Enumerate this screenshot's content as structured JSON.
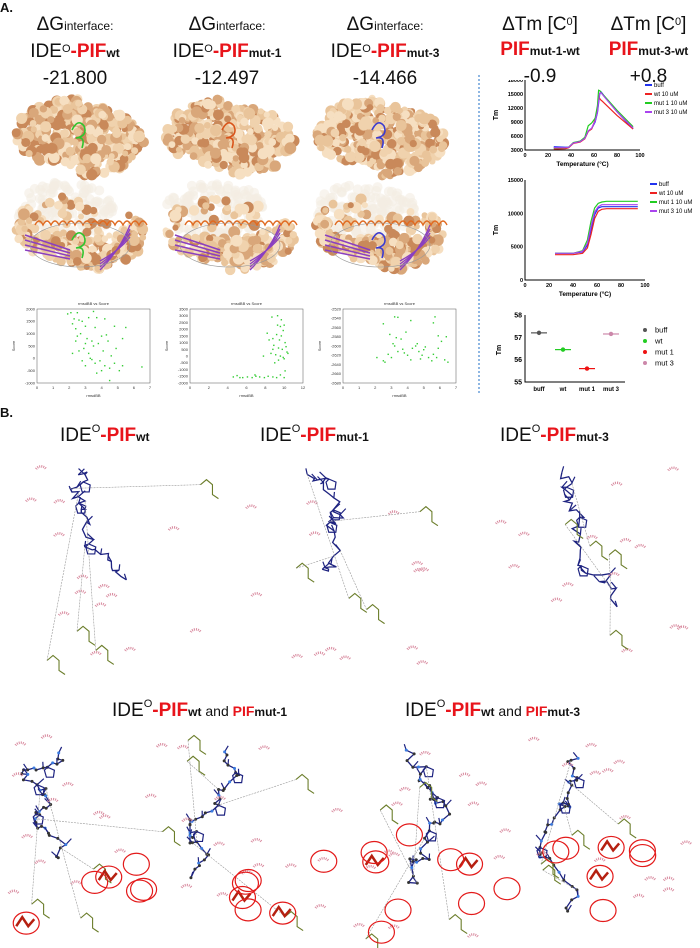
{
  "panel_a": {
    "label": "A.",
    "headers": [
      {
        "line1": "ΔG",
        "line1_sub": "interface:",
        "pre": "IDE",
        "sup": "O",
        "pif": "-PIF",
        "variant": "wt",
        "value": "-21.800"
      },
      {
        "line1": "ΔG",
        "line1_sub": "interface:",
        "pre": "IDE",
        "sup": "O",
        "pif": "-PIF",
        "variant": "mut-1",
        "value": "-12.497"
      },
      {
        "line1": "ΔG",
        "line1_sub": "interface:",
        "pre": "IDE",
        "sup": "O",
        "pif": "-PIF",
        "variant": "mut-3",
        "value": "-14.466"
      },
      {
        "line1": "ΔTm [C",
        "line1_sup": "0",
        "line1_end": "]",
        "pif": "PIF",
        "variant": "mut-1-wt",
        "value": "-0.9"
      },
      {
        "line1": "ΔTm [C",
        "line1_sup": "0",
        "line1_end": "]",
        "pif": "PIF",
        "variant": "mut-3-wt",
        "value": "+0.8"
      }
    ],
    "ligand_colors": [
      "#2fc42f",
      "#d9541a",
      "#3b3bd0"
    ]
  },
  "panel_b": {
    "label": "B.",
    "titles": [
      {
        "pre": "IDE",
        "sup": "O",
        "pif": "-PIF",
        "variant": "wt"
      },
      {
        "pre": "IDE",
        "sup": "O",
        "pif": "-PIF",
        "variant": "mut-1"
      },
      {
        "pre": "IDE",
        "sup": "O",
        "pif": "-PIF",
        "variant": "mut-3"
      }
    ],
    "compare_titles": [
      {
        "pre": "IDE",
        "sup": "O",
        "pif": "-PIF",
        "variant": "wt",
        "and": " and ",
        "pif2": "PIF",
        "variant2": "mut-1"
      },
      {
        "pre": "IDE",
        "sup": "O",
        "pif": "-PIF",
        "variant": "wt",
        "and": " and ",
        "pif2": "PIF",
        "variant2": "mut-3"
      }
    ]
  },
  "chart_data": [
    {
      "type": "scatter",
      "title": "rmsdBB vs Score",
      "xlabel": "rmsdBB",
      "ylabel": "Score",
      "xlim": [
        0,
        7
      ],
      "ylim": [
        -1000,
        2000
      ],
      "xticks": [
        0,
        1,
        2,
        3,
        4,
        5,
        6,
        7
      ],
      "yticks": [
        -1000,
        -500,
        0,
        500,
        1000,
        1500,
        2000
      ],
      "color": "#33cc33",
      "points": [
        [
          1.9,
          1800
        ],
        [
          2.1,
          1850
        ],
        [
          2.3,
          1600
        ],
        [
          2.5,
          1850
        ],
        [
          2.2,
          1400
        ],
        [
          2.6,
          1550
        ],
        [
          2.8,
          1500
        ],
        [
          3.0,
          1300
        ],
        [
          3.2,
          1650
        ],
        [
          3.5,
          1900
        ],
        [
          3.7,
          1650
        ],
        [
          4.2,
          1600
        ],
        [
          2.4,
          1200
        ],
        [
          2.7,
          1000
        ],
        [
          3.1,
          800
        ],
        [
          3.4,
          700
        ],
        [
          3.6,
          1250
        ],
        [
          4.0,
          900
        ],
        [
          4.3,
          950
        ],
        [
          4.8,
          1300
        ],
        [
          5.5,
          1250
        ],
        [
          2.4,
          700
        ],
        [
          2.6,
          300
        ],
        [
          2.9,
          400
        ],
        [
          3.2,
          200
        ],
        [
          3.5,
          500
        ],
        [
          3.8,
          600
        ],
        [
          4.1,
          300
        ],
        [
          4.4,
          700
        ],
        [
          4.9,
          400
        ],
        [
          5.3,
          800
        ],
        [
          2.2,
          200
        ],
        [
          2.8,
          -100
        ],
        [
          3.0,
          -300
        ],
        [
          3.3,
          0
        ],
        [
          3.6,
          -200
        ],
        [
          3.9,
          -100
        ],
        [
          4.2,
          -300
        ],
        [
          4.5,
          -400
        ],
        [
          4.8,
          -200
        ],
        [
          5.1,
          -500
        ],
        [
          5.3,
          -300
        ],
        [
          3.7,
          -600
        ],
        [
          4.5,
          -900
        ],
        [
          6.5,
          -350
        ],
        [
          3.0,
          600
        ],
        [
          4.6,
          100
        ],
        [
          3.4,
          -50
        ],
        [
          4.0,
          -500
        ],
        [
          2.5,
          900
        ]
      ]
    },
    {
      "type": "scatter",
      "title": "rmsdBB vs Score",
      "xlabel": "rmsdBB",
      "ylabel": "Score",
      "xlim": [
        0,
        12
      ],
      "ylim": [
        -2000,
        3500
      ],
      "xticks": [
        0,
        2,
        4,
        6,
        8,
        10,
        12
      ],
      "yticks": [
        -2000,
        -1500,
        -1000,
        -500,
        0,
        500,
        1000,
        1500,
        2000,
        2500,
        3000,
        3500
      ],
      "color": "#33cc33",
      "points": [
        [
          8.7,
          2900
        ],
        [
          9.3,
          3000
        ],
        [
          9.7,
          2700
        ],
        [
          10.0,
          2300
        ],
        [
          9.6,
          2200
        ],
        [
          9.9,
          1900
        ],
        [
          9.2,
          1600
        ],
        [
          8.8,
          1300
        ],
        [
          9.5,
          1200
        ],
        [
          10.1,
          1000
        ],
        [
          8.9,
          800
        ],
        [
          9.4,
          600
        ],
        [
          9.8,
          500
        ],
        [
          10.3,
          300
        ],
        [
          8.6,
          200
        ],
        [
          9.1,
          100
        ],
        [
          9.6,
          0
        ],
        [
          10.0,
          -200
        ],
        [
          9.0,
          -500
        ],
        [
          9.4,
          -300
        ],
        [
          8.4,
          1200
        ],
        [
          8.2,
          1700
        ],
        [
          7.8,
          0
        ],
        [
          9.7,
          1500
        ],
        [
          10.2,
          700
        ],
        [
          9.3,
          2300
        ],
        [
          8.8,
          500
        ],
        [
          9.9,
          -100
        ],
        [
          10.4,
          200
        ],
        [
          10.1,
          -1100
        ],
        [
          4.6,
          -1550
        ],
        [
          5.0,
          -1450
        ],
        [
          5.6,
          -1600
        ],
        [
          6.1,
          -1550
        ],
        [
          6.6,
          -1600
        ],
        [
          7.0,
          -1500
        ],
        [
          7.4,
          -1550
        ],
        [
          7.9,
          -1600
        ],
        [
          8.3,
          -1500
        ],
        [
          8.8,
          -1550
        ],
        [
          9.2,
          -1600
        ],
        [
          9.6,
          -1400
        ],
        [
          10.0,
          -1600
        ],
        [
          6.9,
          -1400
        ],
        [
          5.3,
          -1600
        ]
      ]
    },
    {
      "type": "scatter",
      "title": "rmsdBB vs Score",
      "xlabel": "rmsdBB",
      "ylabel": "Score",
      "xlim": [
        0,
        7
      ],
      "ylim": [
        -2680,
        -2520
      ],
      "xticks": [
        0,
        1,
        2,
        3,
        4,
        5,
        6,
        7
      ],
      "yticks": [
        -2680,
        -2660,
        -2640,
        -2620,
        -2600,
        -2580,
        -2560,
        -2540,
        -2520
      ],
      "color": "#33cc33",
      "points": [
        [
          2.5,
          -2552
        ],
        [
          3.2,
          -2537
        ],
        [
          3.4,
          -2538
        ],
        [
          4.2,
          -2545
        ],
        [
          5.6,
          -2550
        ],
        [
          5.7,
          -2537
        ],
        [
          2.9,
          -2575
        ],
        [
          3.3,
          -2582
        ],
        [
          3.6,
          -2585
        ],
        [
          3.1,
          -2595
        ],
        [
          3.9,
          -2570
        ],
        [
          5.9,
          -2578
        ],
        [
          6.4,
          -2580
        ],
        [
          2.1,
          -2625
        ],
        [
          2.5,
          -2632
        ],
        [
          2.8,
          -2618
        ],
        [
          3.0,
          -2625
        ],
        [
          3.4,
          -2612
        ],
        [
          3.7,
          -2607
        ],
        [
          4.0,
          -2620
        ],
        [
          4.3,
          -2605
        ],
        [
          4.5,
          -2600
        ],
        [
          4.7,
          -2612
        ],
        [
          4.9,
          -2620
        ],
        [
          5.1,
          -2602
        ],
        [
          5.3,
          -2625
        ],
        [
          5.6,
          -2618
        ],
        [
          5.9,
          -2605
        ],
        [
          6.1,
          -2590
        ],
        [
          6.3,
          -2630
        ],
        [
          6.5,
          -2635
        ],
        [
          4.2,
          -2630
        ],
        [
          4.8,
          -2628
        ],
        [
          5.5,
          -2632
        ],
        [
          2.6,
          -2635
        ],
        [
          3.8,
          -2615
        ],
        [
          4.6,
          -2595
        ],
        [
          5.0,
          -2608
        ],
        [
          5.8,
          -2625
        ],
        [
          3.2,
          -2600
        ]
      ]
    },
    {
      "type": "line",
      "xlabel": "Temperature (°C)",
      "ylabel": "Tm",
      "xlim": [
        0,
        100
      ],
      "ylim": [
        3000,
        18000
      ],
      "xticks": [
        0,
        20,
        40,
        60,
        80,
        100
      ],
      "yticks": [
        3000,
        6000,
        9000,
        12000,
        15000,
        18000
      ],
      "legend": "right",
      "x": [
        25,
        35,
        38,
        42,
        48,
        52,
        55,
        58,
        61,
        63,
        64,
        65,
        66,
        67,
        70,
        80,
        94
      ],
      "series": [
        {
          "name": "buff",
          "color": "#2233ee",
          "values": [
            3700,
            3600,
            3600,
            4500,
            4800,
            5500,
            7000,
            7600,
            9000,
            11000,
            13000,
            15000,
            15500,
            15200,
            14200,
            11200,
            7500
          ]
        },
        {
          "name": "wt 10 uM",
          "color": "#ee2222",
          "values": [
            3200,
            3300,
            3500,
            4400,
            4700,
            5400,
            7000,
            7500,
            9500,
            12000,
            14500,
            14000,
            13700,
            13500,
            12800,
            10400,
            7500
          ]
        },
        {
          "name": "mut 1 10 uM",
          "color": "#22cc22",
          "values": [
            3400,
            3500,
            3600,
            4600,
            4900,
            5700,
            8200,
            8800,
            9800,
            12500,
            15800,
            15700,
            15400,
            15100,
            14300,
            11500,
            8000
          ]
        },
        {
          "name": "mut 3 10 uM",
          "color": "#aa44ee",
          "values": [
            3500,
            3500,
            3600,
            4500,
            4800,
            5500,
            7100,
            7700,
            9200,
            11200,
            13500,
            15200,
            15300,
            15000,
            14100,
            11200,
            7700
          ]
        }
      ]
    },
    {
      "type": "line",
      "xlabel": "Temperature (°C)",
      "ylabel": "Tm",
      "xlim": [
        0,
        100
      ],
      "ylim": [
        0,
        15000
      ],
      "xticks": [
        0,
        20,
        40,
        60,
        80,
        100
      ],
      "yticks": [
        0,
        5000,
        10000,
        15000
      ],
      "legend": "top-right",
      "x": [
        25,
        40,
        48,
        52,
        55,
        58,
        61,
        64,
        68,
        75,
        94
      ],
      "series": [
        {
          "name": "buff",
          "color": "#2233ee",
          "values": [
            4000,
            4000,
            4200,
            5200,
            7500,
            9800,
            10800,
            11000,
            11000,
            11000,
            11000
          ]
        },
        {
          "name": "wt 10 uM",
          "color": "#ee2222",
          "values": [
            3800,
            3800,
            4000,
            4800,
            6800,
            9200,
            10300,
            10600,
            10700,
            10700,
            10700
          ]
        },
        {
          "name": "mut 1 10 uM",
          "color": "#22cc22",
          "values": [
            4000,
            4000,
            4400,
            6000,
            8800,
            10800,
            11500,
            11700,
            11800,
            11800,
            11800
          ]
        },
        {
          "name": "mut 3 10 uM",
          "color": "#aa44ee",
          "values": [
            4000,
            4000,
            4300,
            5500,
            8000,
            10200,
            11000,
            11300,
            11300,
            11300,
            11300
          ]
        }
      ]
    },
    {
      "type": "scatter",
      "ylabel": "Tm",
      "categories": [
        "buff",
        "wt",
        "mut 1",
        "mut 3"
      ],
      "ylim": [
        55,
        58
      ],
      "yticks": [
        55,
        56,
        57,
        58
      ],
      "legend": "right",
      "series": [
        {
          "name": "buff",
          "color": "#555555",
          "value": 57.2,
          "error": 0.15
        },
        {
          "name": "wt",
          "color": "#22cc22",
          "value": 56.45,
          "error": 0.15
        },
        {
          "name": "mut 1",
          "color": "#ee1111",
          "value": 55.6,
          "error": 0.15
        },
        {
          "name": "mut 3",
          "color": "#cc88aa",
          "value": 57.15,
          "error": 0.15
        }
      ]
    }
  ]
}
